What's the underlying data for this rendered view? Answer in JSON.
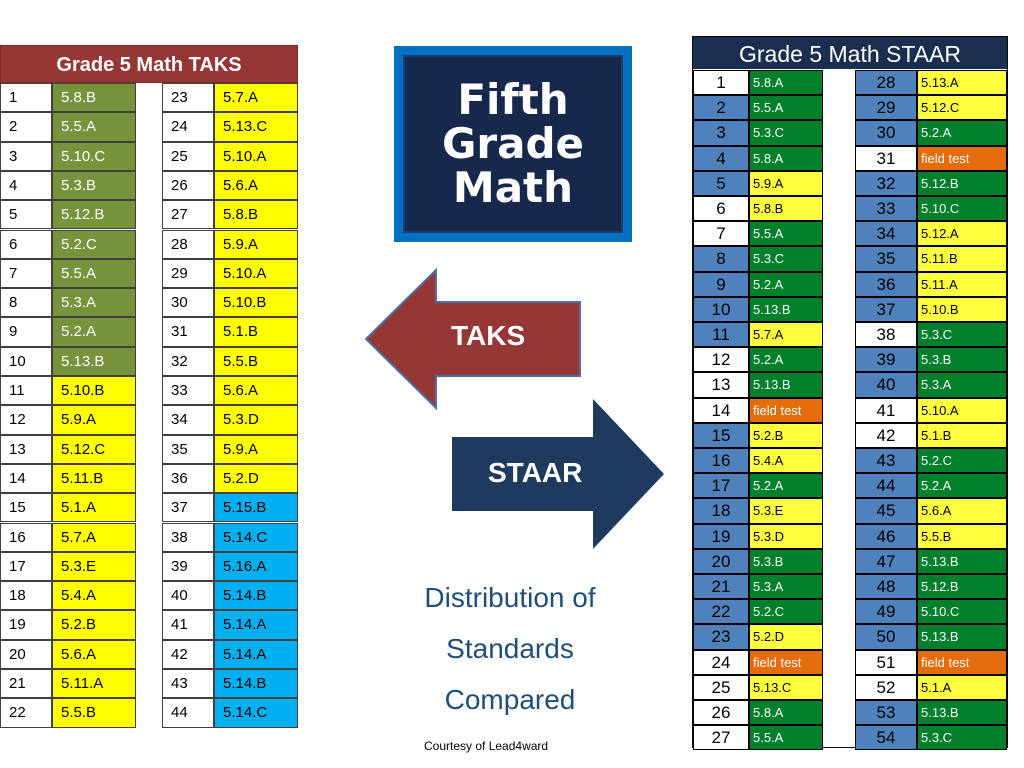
{
  "taks": {
    "title": "Grade 5 Math TAKS",
    "left": [
      {
        "num": "1",
        "std": "5.8.B",
        "color": "green"
      },
      {
        "num": "2",
        "std": "5.5.A",
        "color": "green"
      },
      {
        "num": "3",
        "std": "5.10.C",
        "color": "green"
      },
      {
        "num": "4",
        "std": "5.3.B",
        "color": "green"
      },
      {
        "num": "5",
        "std": "5.12.B",
        "color": "green"
      },
      {
        "num": "6",
        "std": "5.2.C",
        "color": "green"
      },
      {
        "num": "7",
        "std": "5.5.A",
        "color": "green"
      },
      {
        "num": "8",
        "std": "5.3.A",
        "color": "green"
      },
      {
        "num": "9",
        "std": "5.2.A",
        "color": "green"
      },
      {
        "num": "10",
        "std": "5.13.B",
        "color": "green"
      },
      {
        "num": "11",
        "std": "5.10.B",
        "color": "yellow"
      },
      {
        "num": "12",
        "std": "5.9.A",
        "color": "yellow"
      },
      {
        "num": "13",
        "std": "5.12.C",
        "color": "yellow"
      },
      {
        "num": "14",
        "std": "5.11.B",
        "color": "yellow"
      },
      {
        "num": "15",
        "std": "5.1.A",
        "color": "yellow"
      },
      {
        "num": "16",
        "std": "5.7.A",
        "color": "yellow"
      },
      {
        "num": "17",
        "std": "5.3.E",
        "color": "yellow"
      },
      {
        "num": "18",
        "std": "5.4.A",
        "color": "yellow"
      },
      {
        "num": "19",
        "std": "5.2.B",
        "color": "yellow"
      },
      {
        "num": "20",
        "std": "5.6.A",
        "color": "yellow"
      },
      {
        "num": "21",
        "std": "5.11.A",
        "color": "yellow"
      },
      {
        "num": "22",
        "std": "5.5.B",
        "color": "yellow"
      }
    ],
    "right": [
      {
        "num": "23",
        "std": "5.7.A",
        "color": "yellow"
      },
      {
        "num": "24",
        "std": "5.13.C",
        "color": "yellow"
      },
      {
        "num": "25",
        "std": "5.10.A",
        "color": "yellow"
      },
      {
        "num": "26",
        "std": "5.6.A",
        "color": "yellow"
      },
      {
        "num": "27",
        "std": "5.8.B",
        "color": "yellow"
      },
      {
        "num": "28",
        "std": "5.9.A",
        "color": "yellow"
      },
      {
        "num": "29",
        "std": "5.10.A",
        "color": "yellow"
      },
      {
        "num": "30",
        "std": "5.10.B",
        "color": "yellow"
      },
      {
        "num": "31",
        "std": "5.1.B",
        "color": "yellow"
      },
      {
        "num": "32",
        "std": "5.5.B",
        "color": "yellow"
      },
      {
        "num": "33",
        "std": "5.6.A",
        "color": "yellow"
      },
      {
        "num": "34",
        "std": "5.3.D",
        "color": "yellow"
      },
      {
        "num": "35",
        "std": "5.9.A",
        "color": "yellow"
      },
      {
        "num": "36",
        "std": "5.2.D",
        "color": "yellow"
      },
      {
        "num": "37",
        "std": " 5.15.B",
        "color": "cyan"
      },
      {
        "num": "38",
        "std": "5.14.C",
        "color": "cyan"
      },
      {
        "num": "39",
        "std": "5.16.A",
        "color": "cyan"
      },
      {
        "num": "40",
        "std": "5.14.B",
        "color": "cyan"
      },
      {
        "num": "41",
        "std": "5.14.A",
        "color": "cyan"
      },
      {
        "num": "42",
        "std": "5.14.A",
        "color": "cyan"
      },
      {
        "num": "43",
        "std": "5.14.B",
        "color": "cyan"
      },
      {
        "num": "44",
        "std": "5.14.C",
        "color": "cyan"
      }
    ]
  },
  "title_box": {
    "text": "Fifth\nGrade\nMath"
  },
  "arrows": {
    "taks_label": "TAKS",
    "staar_label": "STAAR"
  },
  "caption": "Distribution of\nStandards\nCompared",
  "courtesy": "Courtesy of Lead4ward",
  "staar": {
    "title": "Grade 5 Math STAAR",
    "left": [
      {
        "num": "1",
        "numColor": "white",
        "std": "5.8.A",
        "color": "green"
      },
      {
        "num": "2",
        "numColor": "blue",
        "std": "5.5.A",
        "color": "green"
      },
      {
        "num": "3",
        "numColor": "blue",
        "std": "5.3.C",
        "color": "green"
      },
      {
        "num": "4",
        "numColor": "blue",
        "std": "5.8.A",
        "color": "green"
      },
      {
        "num": "5",
        "numColor": "blue",
        "std": "5.9.A",
        "color": "yellow"
      },
      {
        "num": "6",
        "numColor": "white",
        "std": "5.8.B",
        "color": "yellow"
      },
      {
        "num": "7",
        "numColor": "white",
        "std": "5.5.A",
        "color": "green"
      },
      {
        "num": "8",
        "numColor": "blue",
        "std": "5.3.C",
        "color": "green"
      },
      {
        "num": "9",
        "numColor": "blue",
        "std": "5.2.A",
        "color": "green"
      },
      {
        "num": "10",
        "numColor": "blue",
        "std": "5.13.B",
        "color": "green"
      },
      {
        "num": "11",
        "numColor": "blue",
        "std": "5.7.A",
        "color": "yellow"
      },
      {
        "num": "12",
        "numColor": "white",
        "std": "5.2.A",
        "color": "green"
      },
      {
        "num": "13",
        "numColor": "white",
        "std": "5.13.B",
        "color": "green"
      },
      {
        "num": "14",
        "numColor": "white",
        "std": "field test",
        "color": "orange"
      },
      {
        "num": "15",
        "numColor": "blue",
        "std": "5.2.B",
        "color": "yellow"
      },
      {
        "num": "16",
        "numColor": "blue",
        "std": "5.4.A",
        "color": "yellow"
      },
      {
        "num": "17",
        "numColor": "blue",
        "std": "5.2.A",
        "color": "green"
      },
      {
        "num": "18",
        "numColor": "blue",
        "std": "5.3.E",
        "color": "yellow"
      },
      {
        "num": "19",
        "numColor": "blue",
        "std": "5.3.D",
        "color": "yellow"
      },
      {
        "num": "20",
        "numColor": "blue",
        "std": "5.3.B",
        "color": "green"
      },
      {
        "num": "21",
        "numColor": "blue",
        "std": "5.3.A",
        "color": "green"
      },
      {
        "num": "22",
        "numColor": "blue",
        "std": "5.2.C",
        "color": "green"
      },
      {
        "num": "23",
        "numColor": "blue",
        "std": "5.2.D",
        "color": "yellow"
      },
      {
        "num": "24",
        "numColor": "white",
        "std": "field test",
        "color": "orange"
      },
      {
        "num": "25",
        "numColor": "white",
        "std": "5.13.C",
        "color": "yellow"
      },
      {
        "num": "26",
        "numColor": "white",
        "std": "5.8.A",
        "color": "green"
      },
      {
        "num": "27",
        "numColor": "white",
        "std": "5.5.A",
        "color": "green"
      }
    ],
    "right": [
      {
        "num": "28",
        "numColor": "blue",
        "std": "5.13.A",
        "color": "yellow"
      },
      {
        "num": "29",
        "numColor": "blue",
        "std": "5.12.C",
        "color": "yellow"
      },
      {
        "num": "30",
        "numColor": "blue",
        "std": "5.2.A",
        "color": "green"
      },
      {
        "num": "31",
        "numColor": "white",
        "std": "field test",
        "color": "orange"
      },
      {
        "num": "32",
        "numColor": "blue",
        "std": "5.12.B",
        "color": "green"
      },
      {
        "num": "33",
        "numColor": "blue",
        "std": "5.10.C",
        "color": "green"
      },
      {
        "num": "34",
        "numColor": "blue",
        "std": "5.12.A",
        "color": "yellow"
      },
      {
        "num": "35",
        "numColor": "blue",
        "std": "5.11.B",
        "color": "yellow"
      },
      {
        "num": "36",
        "numColor": "blue",
        "std": "5.11.A",
        "color": "yellow"
      },
      {
        "num": "37",
        "numColor": "blue",
        "std": "5.10.B",
        "color": "yellow"
      },
      {
        "num": "38",
        "numColor": "white",
        "std": "5.3.C",
        "color": "green"
      },
      {
        "num": "39",
        "numColor": "blue",
        "std": "5.3.B",
        "color": "green"
      },
      {
        "num": "40",
        "numColor": "blue",
        "std": "5.3.A",
        "color": "green"
      },
      {
        "num": "41",
        "numColor": "white",
        "std": "5.10.A",
        "color": "yellow"
      },
      {
        "num": "42",
        "numColor": "white",
        "std": "5.1.B",
        "color": "yellow"
      },
      {
        "num": "43",
        "numColor": "blue",
        "std": "5.2.C",
        "color": "green"
      },
      {
        "num": "44",
        "numColor": "blue",
        "std": "5.2.A",
        "color": "green"
      },
      {
        "num": "45",
        "numColor": "blue",
        "std": "5.6.A",
        "color": "yellow"
      },
      {
        "num": "46",
        "numColor": "blue",
        "std": "5.5.B",
        "color": "yellow"
      },
      {
        "num": "47",
        "numColor": "blue",
        "std": "5.13.B",
        "color": "green"
      },
      {
        "num": "48",
        "numColor": "blue",
        "std": "5.12.B",
        "color": "green"
      },
      {
        "num": "49",
        "numColor": "blue",
        "std": "5.10.C",
        "color": "green"
      },
      {
        "num": "50",
        "numColor": "blue",
        "std": "5.13.B",
        "color": "green"
      },
      {
        "num": "51",
        "numColor": "white",
        "std": "field test",
        "color": "orange"
      },
      {
        "num": "52",
        "numColor": "white",
        "std": "5.1.A",
        "color": "yellow"
      },
      {
        "num": "53",
        "numColor": "blue",
        "std": "5.13.B",
        "color": "green"
      },
      {
        "num": "54",
        "numColor": "blue",
        "std": "5.3.C",
        "color": "green"
      }
    ]
  },
  "colors": {
    "taks_header": "#953735",
    "taks_green": "#77933c",
    "yellow": "#ffff00",
    "cyan": "#00b0f0",
    "staar_header": "#1a2e4f",
    "staar_green": "#00802a",
    "staar_blue": "#4f81bd",
    "orange": "#e46c0a",
    "taks_arrow": "#953735",
    "staar_arrow": "#1f3a5f",
    "title_bg": "#16294d",
    "caption": "#1f4e79"
  }
}
